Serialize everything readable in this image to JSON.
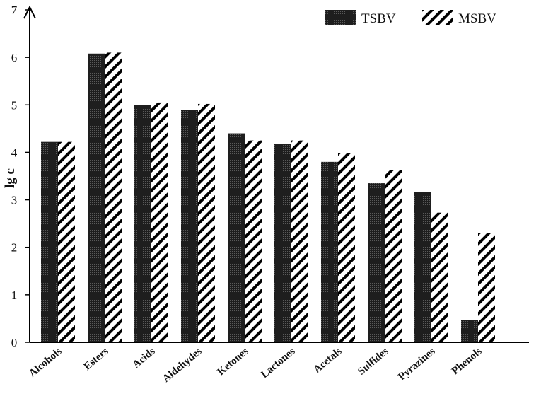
{
  "chart_data": {
    "type": "bar",
    "ylabel": "lg c",
    "xlabel": "",
    "ylim": [
      0,
      7
    ],
    "yticks": [
      0,
      1,
      2,
      3,
      4,
      5,
      6,
      7
    ],
    "grid": false,
    "legend_position": "top-right",
    "categories": [
      "Alcohols",
      "Esters",
      "Acids",
      "Aldehydes",
      "Ketones",
      "Lactones",
      "Acetals",
      "Sulfides",
      "Pyrazines",
      "Phenols"
    ],
    "series": [
      {
        "name": "TSBV",
        "pattern": "dotted-solid",
        "color": "#1a1a1a",
        "values": [
          4.22,
          6.08,
          5.0,
          4.9,
          4.4,
          4.17,
          3.8,
          3.35,
          3.17,
          0.47
        ]
      },
      {
        "name": "MSBV",
        "pattern": "diagonal-hatch",
        "color": "#000000",
        "values": [
          4.22,
          6.1,
          5.05,
          5.02,
          4.25,
          4.25,
          3.98,
          3.63,
          2.73,
          2.3
        ]
      }
    ]
  }
}
